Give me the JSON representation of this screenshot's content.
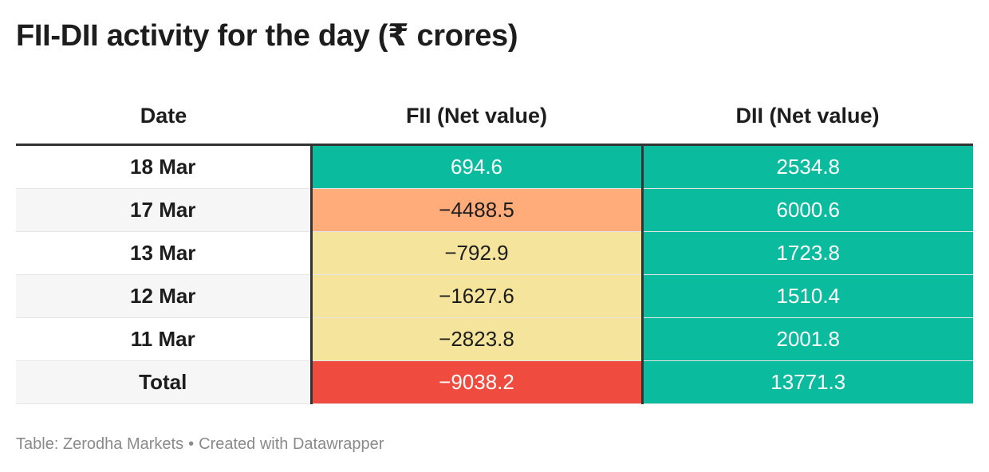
{
  "title": "FII-DII activity for the day (₹ crores)",
  "colors": {
    "teal": "#0bbb9e",
    "orange": "#ffab7a",
    "yellow": "#f5e49c",
    "red": "#ef4b3f",
    "rule": "#333333"
  },
  "chart_data": {
    "type": "table",
    "columns": [
      "Date",
      "FII (Net value)",
      "DII (Net value)"
    ],
    "rows": [
      {
        "date": "18 Mar",
        "fii": "694.6",
        "dii": "2534.8",
        "fii_color": "#0bbb9e",
        "fii_text": "light"
      },
      {
        "date": "17 Mar",
        "fii": "−4488.5",
        "dii": "6000.6",
        "fii_color": "#ffab7a",
        "fii_text": "dark"
      },
      {
        "date": "13 Mar",
        "fii": "−792.9",
        "dii": "1723.8",
        "fii_color": "#f5e49c",
        "fii_text": "dark"
      },
      {
        "date": "12 Mar",
        "fii": "−1627.6",
        "dii": "1510.4",
        "fii_color": "#f5e49c",
        "fii_text": "dark"
      },
      {
        "date": "11 Mar",
        "fii": "−2823.8",
        "dii": "2001.8",
        "fii_color": "#f5e49c",
        "fii_text": "dark"
      },
      {
        "date": "Total",
        "fii": "−9038.2",
        "dii": "13771.3",
        "fii_color": "#ef4b3f",
        "fii_text": "light"
      }
    ]
  },
  "footer": {
    "source": "Table: Zerodha Markets",
    "separator": "•",
    "credit": "Created with Datawrapper"
  }
}
